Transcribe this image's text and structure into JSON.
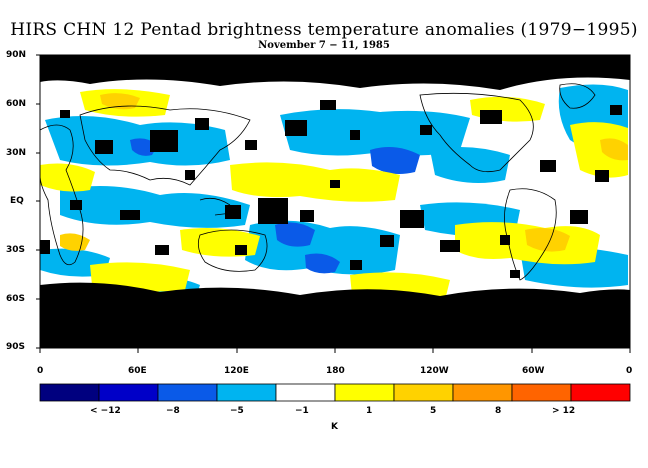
{
  "title": "HIRS CHN 12 Pentad brightness temperature anomalies (1979−1995)",
  "subtitle": "November 7 − 11, 1985",
  "lat_labels": [
    "90N",
    "60N",
    "30N",
    "EQ",
    "30S",
    "60S",
    "90S"
  ],
  "lon_labels": [
    "0",
    "60E",
    "120E",
    "180",
    "120W",
    "60W",
    "0"
  ],
  "colorbar": {
    "colors": [
      "#00007f",
      "#0000c8",
      "#0a5ae8",
      "#00b4f0",
      "#ffffff",
      "#ffff00",
      "#ffd200",
      "#ff9600",
      "#ff6400",
      "#ff0000"
    ],
    "tick_labels": [
      "< −12",
      "−8",
      "−5",
      "−1",
      "1",
      "5",
      "8",
      "> 12"
    ],
    "unit": "K"
  },
  "colors": {
    "missing": "#000000",
    "coast": "#000000",
    "blue": "#00b4f0",
    "deep_blue": "#0a5ae8",
    "yellow": "#ffff00",
    "orange": "#ffd200"
  }
}
